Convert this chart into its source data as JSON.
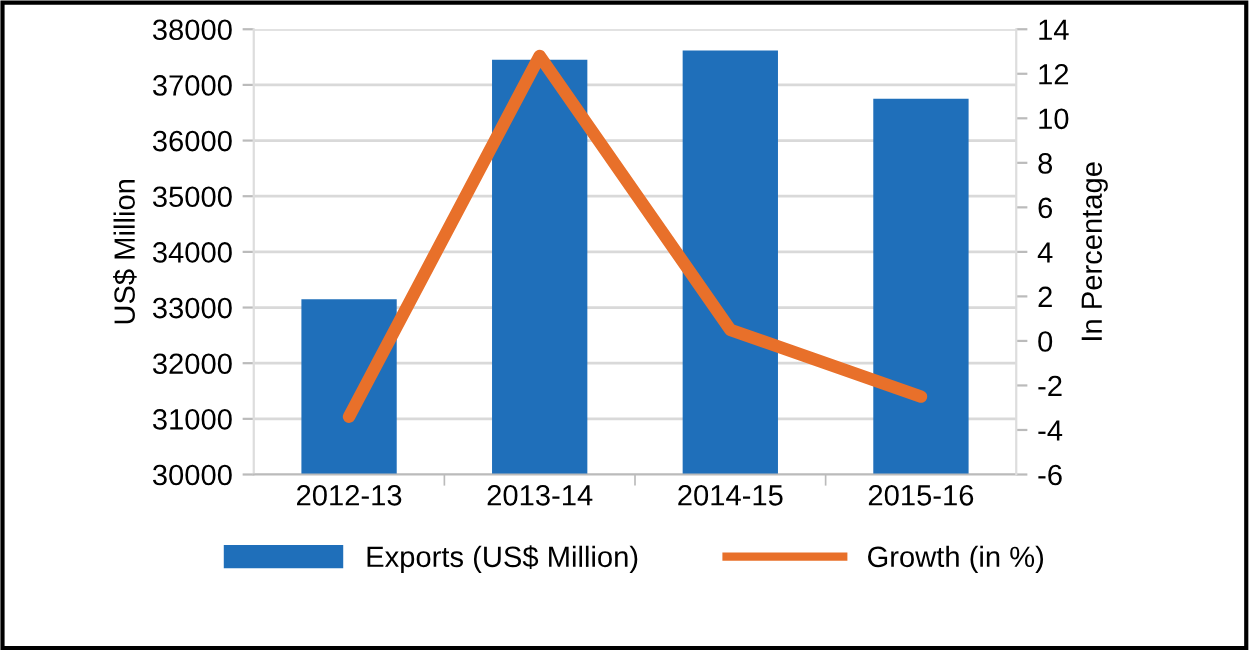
{
  "chart_data": {
    "type": "bar",
    "categories": [
      "2012-13",
      "2013-14",
      "2014-15",
      "2015-16"
    ],
    "series": [
      {
        "name": "Exports (US$ Million)",
        "color": "#1f6fba",
        "values": [
          33150,
          37450,
          37620,
          36750
        ]
      },
      {
        "name": "Growth (in %)",
        "type": "line",
        "axis": "y2",
        "color": "#e8702a",
        "values": [
          -3.4,
          12.8,
          0.5,
          -2.5
        ]
      }
    ],
    "ylabel": "US$ Million",
    "y2label": "In Percentage",
    "ylim": [
      30000,
      38000
    ],
    "yticks": [
      30000,
      31000,
      32000,
      33000,
      34000,
      35000,
      36000,
      37000,
      38000
    ],
    "y2lim": [
      -6,
      14
    ],
    "y2ticks": [
      -6,
      -4,
      -2,
      0,
      2,
      4,
      6,
      8,
      10,
      12,
      14
    ],
    "grid": "y",
    "legend": "bottom",
    "marker": "none"
  }
}
